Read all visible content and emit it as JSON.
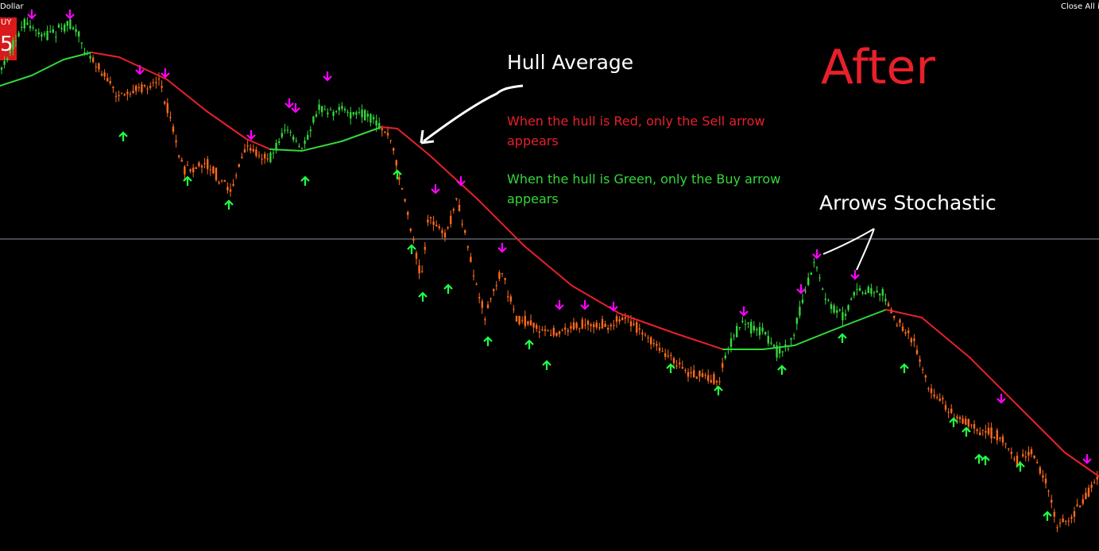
{
  "header": {
    "symbol": "Dollar",
    "buy_button": "UY",
    "buy_price": "5",
    "close_all": "Close All in"
  },
  "annotations": {
    "title": "After",
    "hull_label": "Hull Average",
    "red_note": "When the hull is Red, only the Sell arrow appears",
    "green_note": "When the hull is Green, only the Buy arrow appears",
    "arrows_label": "Arrows Stochastic"
  }
}
